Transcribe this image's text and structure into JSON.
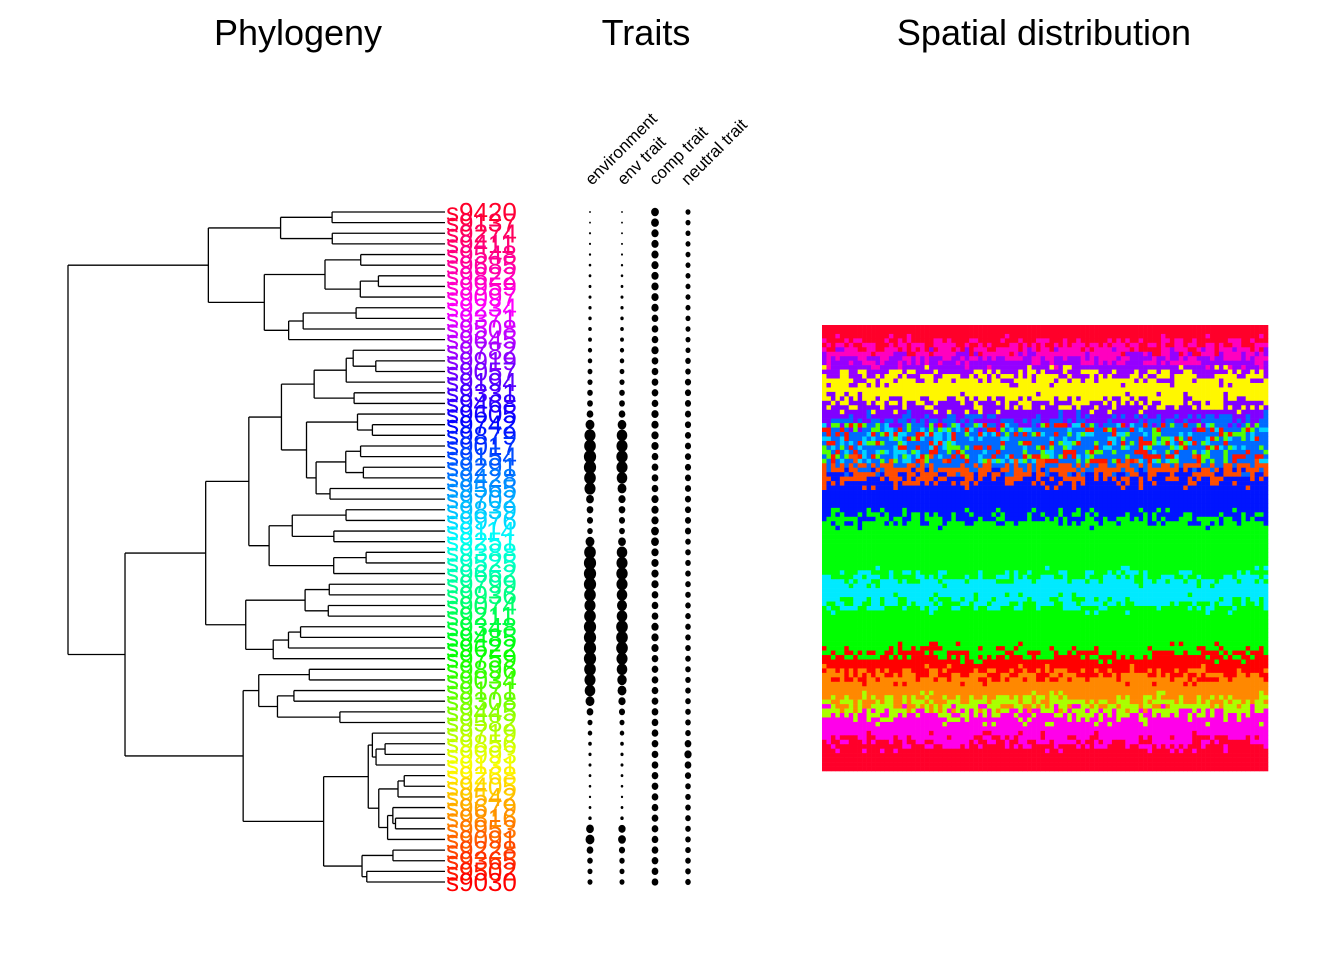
{
  "panels": {
    "phylogeny_title": "Phylogeny",
    "traits_title": "Traits",
    "spatial_title": "Spatial distribution"
  },
  "chart_data": [
    {
      "type": "tree",
      "title": "Phylogeny",
      "tip_count": 64,
      "tip_label_palette": "rainbow (red → magenta → purple → blue → cyan → green → yellow → orange → red, top to bottom)",
      "tip_labels_top": "s9420",
      "tip_labels_bottom": "s9030"
    },
    {
      "type": "scatter",
      "title": "Traits",
      "columns": [
        "environment",
        "env trait",
        "comp trait",
        "neutral trait"
      ],
      "rows": 64,
      "description_values": {
        "environment": [
          0.05,
          0.05,
          0.08,
          0.08,
          0.1,
          0.12,
          0.14,
          0.15,
          0.16,
          0.18,
          0.2,
          0.22,
          0.24,
          0.28,
          0.3,
          0.34,
          0.36,
          0.4,
          0.42,
          0.5,
          0.7,
          0.9,
          0.95,
          1,
          1,
          0.95,
          0.9,
          0.6,
          0.5,
          0.45,
          0.4,
          0.7,
          0.95,
          1,
          1,
          1,
          0.95,
          0.9,
          0.95,
          1,
          1,
          1,
          1,
          0.95,
          0.9,
          0.85,
          0.7,
          0.5,
          0.35,
          0.3,
          0.22,
          0.18,
          0.16,
          0.14,
          0.12,
          0.1,
          0.14,
          0.2,
          0.6,
          0.7,
          0.5,
          0.4,
          0.35,
          0.35
        ],
        "env trait": [
          0.04,
          0.05,
          0.06,
          0.07,
          0.08,
          0.1,
          0.12,
          0.14,
          0.16,
          0.18,
          0.2,
          0.22,
          0.24,
          0.28,
          0.3,
          0.33,
          0.36,
          0.4,
          0.42,
          0.5,
          0.68,
          0.85,
          0.9,
          0.92,
          0.9,
          0.85,
          0.7,
          0.55,
          0.5,
          0.45,
          0.42,
          0.6,
          0.85,
          0.9,
          0.92,
          0.9,
          0.85,
          0.8,
          0.85,
          0.95,
          0.95,
          0.95,
          0.9,
          0.85,
          0.75,
          0.7,
          0.55,
          0.45,
          0.35,
          0.3,
          0.22,
          0.18,
          0.16,
          0.14,
          0.12,
          0.1,
          0.14,
          0.2,
          0.55,
          0.6,
          0.45,
          0.38,
          0.35,
          0.35
        ],
        "comp trait": [
          0.6,
          0.6,
          0.55,
          0.55,
          0.55,
          0.55,
          0.55,
          0.55,
          0.55,
          0.55,
          0.5,
          0.5,
          0.5,
          0.55,
          0.5,
          0.5,
          0.5,
          0.5,
          0.5,
          0.55,
          0.55,
          0.55,
          0.55,
          0.5,
          0.5,
          0.5,
          0.5,
          0.55,
          0.55,
          0.55,
          0.6,
          0.6,
          0.55,
          0.55,
          0.55,
          0.55,
          0.5,
          0.5,
          0.5,
          0.55,
          0.55,
          0.55,
          0.5,
          0.5,
          0.5,
          0.5,
          0.5,
          0.5,
          0.5,
          0.5,
          0.5,
          0.5,
          0.5,
          0.5,
          0.5,
          0.5,
          0.5,
          0.5,
          0.5,
          0.5,
          0.5,
          0.5,
          0.5,
          0.5
        ],
        "neutral trait": [
          0.35,
          0.35,
          0.35,
          0.35,
          0.35,
          0.35,
          0.35,
          0.35,
          0.35,
          0.35,
          0.35,
          0.35,
          0.35,
          0.35,
          0.4,
          0.4,
          0.45,
          0.45,
          0.45,
          0.45,
          0.45,
          0.45,
          0.45,
          0.45,
          0.45,
          0.45,
          0.45,
          0.45,
          0.45,
          0.45,
          0.45,
          0.4,
          0.4,
          0.4,
          0.4,
          0.4,
          0.4,
          0.4,
          0.4,
          0.4,
          0.4,
          0.4,
          0.4,
          0.4,
          0.4,
          0.4,
          0.4,
          0.4,
          0.4,
          0.4,
          0.5,
          0.55,
          0.5,
          0.45,
          0.4,
          0.4,
          0.4,
          0.4,
          0.4,
          0.4,
          0.4,
          0.4,
          0.4,
          0.4
        ]
      }
    },
    {
      "type": "heatmap",
      "title": "Spatial distribution",
      "grid": "approximately 100 × 100 cells",
      "bands_top_to_bottom": [
        "red",
        "magenta",
        "purple",
        "yellow",
        "purple",
        "blue/green/red mix",
        "orange-red",
        "blue",
        "green",
        "cyan/green",
        "green",
        "red",
        "orange",
        "yellow-green",
        "magenta",
        "red"
      ]
    }
  ],
  "colors": {
    "tree_line": "#000000",
    "trait_dot": "#000000"
  }
}
